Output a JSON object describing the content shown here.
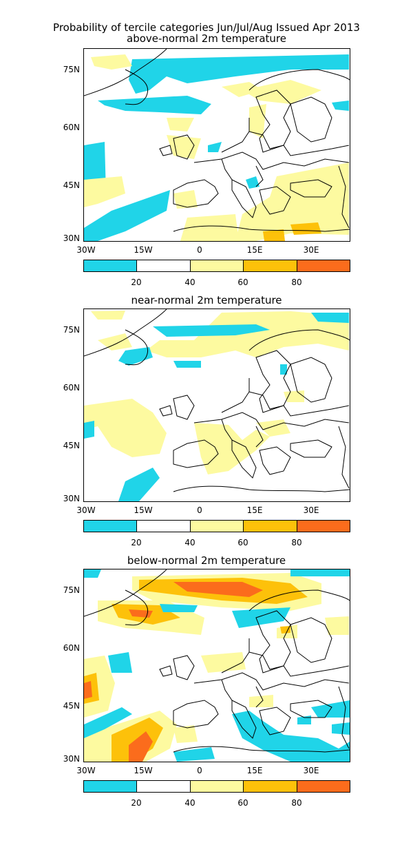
{
  "header": {
    "line1": "Probability of tercile categories Jun/Jul/Aug Issued Apr 2013"
  },
  "panels": [
    {
      "id": "above",
      "title": "above-normal 2m temperature"
    },
    {
      "id": "near",
      "title": "near-normal 2m temperature"
    },
    {
      "id": "below",
      "title": "below-normal 2m temperature"
    }
  ],
  "axes": {
    "lat_ticks": [
      "75N",
      "60N",
      "45N",
      "30N"
    ],
    "lon_ticks": [
      "30W",
      "15W",
      "0",
      "15E",
      "30E"
    ]
  },
  "colorbar": {
    "labels": [
      "20",
      "40",
      "60",
      "80"
    ],
    "colors": [
      "#20d4e8",
      "#ffffff",
      "#fdfaa0",
      "#fdc10a",
      "#fb6c1c"
    ]
  },
  "colors": {
    "low": "#20d4e8",
    "mid": "#fdfaa0",
    "high": "#fdc10a",
    "top": "#fb6c1c"
  }
}
